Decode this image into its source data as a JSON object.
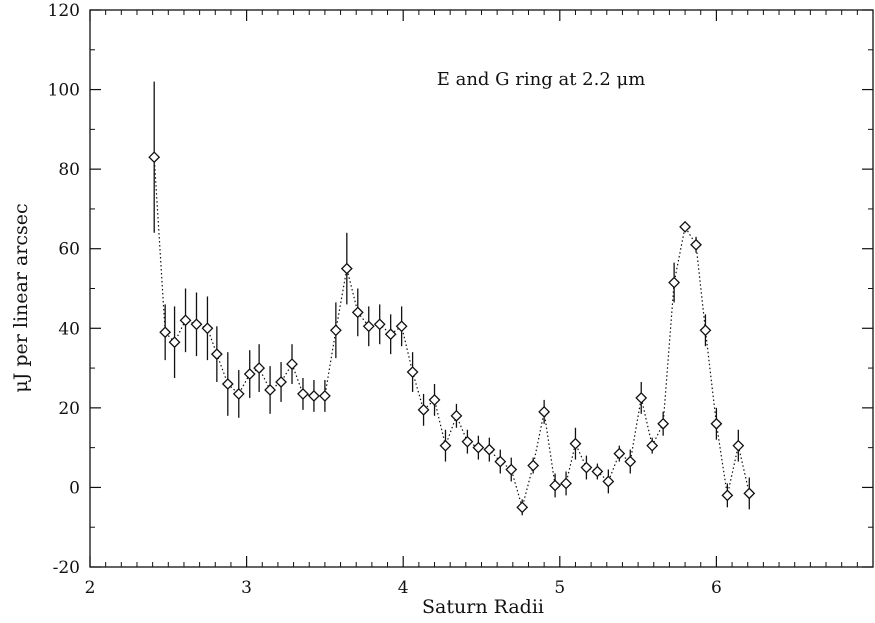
{
  "chart_data": {
    "type": "scatter",
    "title": "",
    "annotation": "E and G ring at 2.2 μm",
    "xlabel": "Saturn Radii",
    "ylabel": "μJ per linear arcsec",
    "xlim": [
      2,
      7
    ],
    "ylim": [
      -20,
      120
    ],
    "xticks": [
      2,
      3,
      4,
      5,
      6
    ],
    "yticks": [
      -20,
      0,
      20,
      40,
      60,
      80,
      100,
      120
    ],
    "grid": false,
    "legend": "none",
    "marker": "diamond",
    "connector": "dotted",
    "colors": {
      "ink": "#111111",
      "background": "#ffffff"
    },
    "series": [
      {
        "x": [
          2.41,
          2.48,
          2.54,
          2.61,
          2.68,
          2.75,
          2.81,
          2.88,
          2.95,
          3.02,
          3.08,
          3.15,
          3.22,
          3.29,
          3.36,
          3.43,
          3.5,
          3.57,
          3.64,
          3.71,
          3.78,
          3.85,
          3.92,
          3.99,
          4.06,
          4.13,
          4.2,
          4.27,
          4.34,
          4.41,
          4.48,
          4.55,
          4.62,
          4.69,
          4.76,
          4.83,
          4.9,
          4.97,
          5.04,
          5.1,
          5.17,
          5.24,
          5.31,
          5.38,
          5.45,
          5.52,
          5.59,
          5.66,
          5.73,
          5.8,
          5.87,
          5.93,
          6.0,
          6.07,
          6.14,
          6.21
        ],
        "y": [
          83,
          39,
          36.5,
          42,
          41,
          40,
          33.5,
          26,
          23.5,
          28.5,
          30,
          24.5,
          26.5,
          31,
          23.5,
          23,
          23,
          39.5,
          55,
          44,
          40.5,
          41,
          38.5,
          40.5,
          29,
          19.5,
          22,
          10.5,
          18,
          11.5,
          10,
          9.5,
          6.5,
          4.5,
          -5,
          5.5,
          19,
          0.5,
          1,
          11,
          5,
          4,
          1.5,
          8.5,
          6.5,
          22.5,
          10.5,
          16,
          51.5,
          65.5,
          61,
          39.5,
          16,
          -2,
          10.5,
          -1.5
        ],
        "err": [
          19,
          7,
          9,
          8,
          8,
          8,
          7,
          8,
          6,
          6,
          6,
          6,
          5,
          5,
          4,
          4,
          4,
          7,
          9,
          6,
          5,
          5,
          5,
          5,
          5,
          4,
          4,
          4,
          3,
          3,
          3,
          3,
          3,
          3,
          2,
          2,
          3,
          3,
          3,
          4,
          3,
          2,
          3,
          2,
          3,
          4,
          2,
          3,
          5,
          1,
          2,
          4,
          4,
          3,
          4,
          4
        ]
      }
    ]
  }
}
